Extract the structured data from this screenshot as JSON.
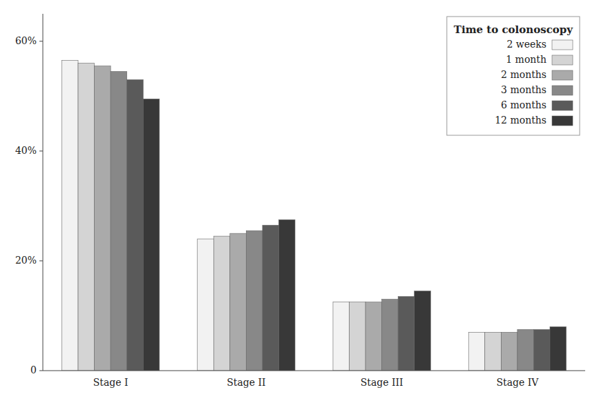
{
  "chart_data": {
    "type": "bar",
    "categories": [
      "Stage I",
      "Stage II",
      "Stage III",
      "Stage IV"
    ],
    "series": [
      {
        "name": "2 weeks",
        "color": "#f2f2f2",
        "values": [
          56.5,
          24.0,
          12.5,
          7.0
        ]
      },
      {
        "name": "1 month",
        "color": "#d4d4d4",
        "values": [
          56.0,
          24.5,
          12.5,
          7.0
        ]
      },
      {
        "name": "2 months",
        "color": "#aaaaaa",
        "values": [
          55.5,
          25.0,
          12.5,
          7.0
        ]
      },
      {
        "name": "3 months",
        "color": "#888888",
        "values": [
          54.5,
          25.5,
          13.0,
          7.5
        ]
      },
      {
        "name": "6 months",
        "color": "#5a5a5a",
        "values": [
          53.0,
          26.5,
          13.5,
          7.5
        ]
      },
      {
        "name": "12 months",
        "color": "#383838",
        "values": [
          49.5,
          27.5,
          14.5,
          8.0
        ]
      }
    ],
    "legend_title": "Time to colonoscopy",
    "legend": "upper right",
    "ylim": [
      0,
      65
    ],
    "yticks": [
      0,
      {
        "value": 20,
        "label": "20%"
      },
      {
        "value": 40,
        "label": "40%"
      },
      {
        "value": 60,
        "label": "60%"
      }
    ],
    "grid": false
  }
}
